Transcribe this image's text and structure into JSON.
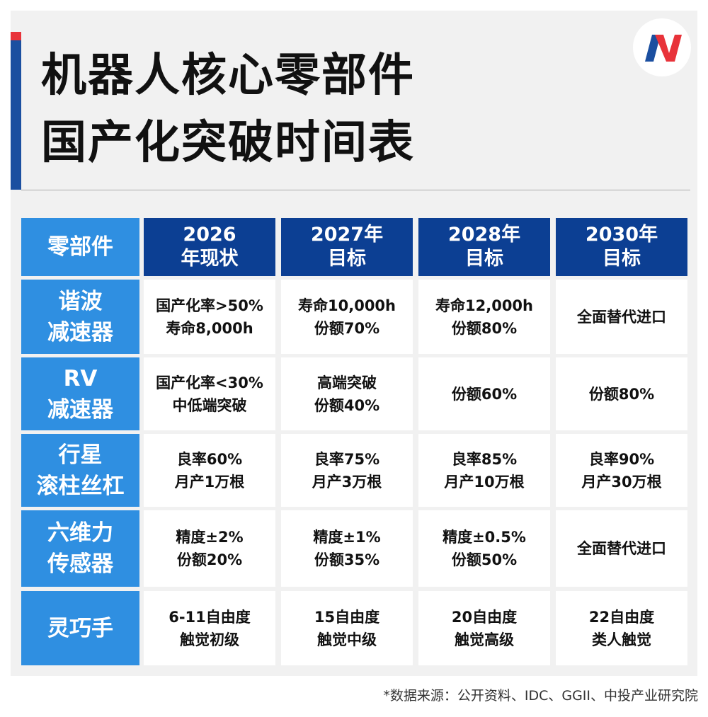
{
  "header": {
    "title": [
      "机器人核心零部件",
      "国产化突破时间表"
    ]
  },
  "table": {
    "header": [
      [
        "零部件"
      ],
      [
        "2026",
        "年现状"
      ],
      [
        "2027年",
        "目标"
      ],
      [
        "2028年",
        "目标"
      ],
      [
        "2030年",
        "目标"
      ]
    ],
    "rows": [
      [
        [
          "谐波",
          "减速器"
        ],
        [
          "国产化率>50%",
          "寿命8,000h"
        ],
        [
          "寿命10,000h",
          "份额70%"
        ],
        [
          "寿命12,000h",
          "份额80%"
        ],
        [
          "全面替代进口"
        ]
      ],
      [
        [
          "RV",
          "减速器"
        ],
        [
          "国产化率<30%",
          "中低端突破"
        ],
        [
          "高端突破",
          "份额40%"
        ],
        [
          "份额60%"
        ],
        [
          "份额80%"
        ]
      ],
      [
        [
          "行星",
          "滚柱丝杠"
        ],
        [
          "良率60%",
          "月产1万根"
        ],
        [
          "良率75%",
          "月产3万根"
        ],
        [
          "良率85%",
          "月产10万根"
        ],
        [
          "良率90%",
          "月产30万根"
        ]
      ],
      [
        [
          "六维力",
          "传感器"
        ],
        [
          "精度±2%",
          "份额20%"
        ],
        [
          "精度±1%",
          "份额35%"
        ],
        [
          "精度±0.5%",
          "份额50%"
        ],
        [
          "全面替代进口"
        ]
      ],
      [
        [
          "灵巧手"
        ],
        [
          "6-11自由度",
          "触觉初级"
        ],
        [
          "15自由度",
          "触觉中级"
        ],
        [
          "20自由度",
          "触觉高级"
        ],
        [
          "22自由度",
          "类人触觉"
        ]
      ]
    ]
  },
  "footer": {
    "source": "*数据来源：公开资料、IDC、GGII、中投产业研究院"
  }
}
